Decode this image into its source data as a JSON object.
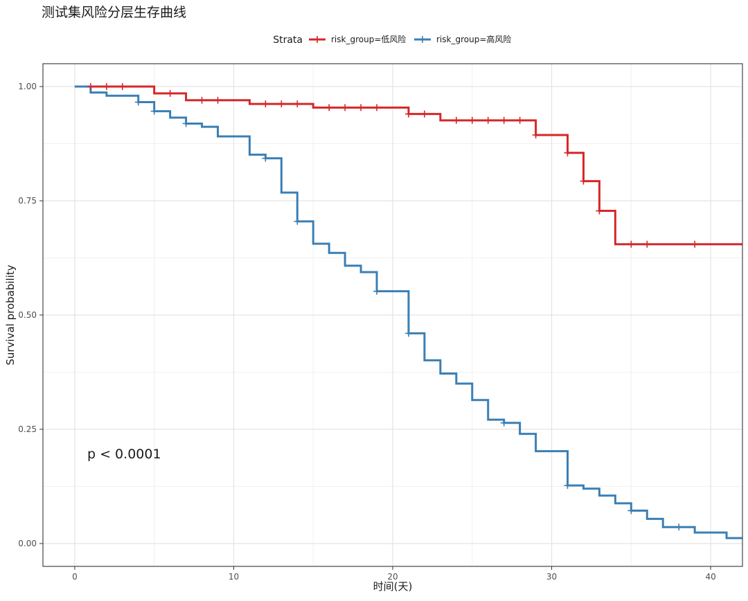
{
  "chart_data": {
    "type": "line",
    "title": "测试集风险分层生存曲线",
    "xlabel": "时间(天)",
    "ylabel": "Survival probability",
    "xlim": [
      -2,
      42
    ],
    "ylim": [
      -0.05,
      1.05
    ],
    "x_ticks": [
      0,
      10,
      20,
      30,
      40
    ],
    "y_ticks": [
      0.0,
      0.25,
      0.5,
      0.75,
      1.0
    ],
    "y_tick_labels": [
      "0.00",
      "0.25",
      "0.50",
      "0.75",
      "1.00"
    ],
    "grid": true,
    "legend": {
      "title": "Strata",
      "position": "top"
    },
    "annotation": "p < 0.0001",
    "series": [
      {
        "name": "risk_group=低风险",
        "color": "#d62728",
        "steps": [
          [
            0,
            1.0
          ],
          [
            5,
            0.985
          ],
          [
            7,
            0.97
          ],
          [
            11,
            0.962
          ],
          [
            15,
            0.954
          ],
          [
            21,
            0.94
          ],
          [
            23,
            0.926
          ],
          [
            29,
            0.894
          ],
          [
            31,
            0.855
          ],
          [
            32,
            0.793
          ],
          [
            33,
            0.728
          ],
          [
            34,
            0.655
          ],
          [
            42,
            0.655
          ]
        ],
        "censor": [
          [
            1,
            1.0
          ],
          [
            2,
            1.0
          ],
          [
            3,
            1.0
          ],
          [
            6,
            0.985
          ],
          [
            8,
            0.97
          ],
          [
            9,
            0.97
          ],
          [
            12,
            0.962
          ],
          [
            13,
            0.962
          ],
          [
            14,
            0.962
          ],
          [
            16,
            0.954
          ],
          [
            17,
            0.954
          ],
          [
            18,
            0.954
          ],
          [
            19,
            0.954
          ],
          [
            21,
            0.94
          ],
          [
            22,
            0.94
          ],
          [
            24,
            0.926
          ],
          [
            25,
            0.926
          ],
          [
            26,
            0.926
          ],
          [
            27,
            0.926
          ],
          [
            28,
            0.926
          ],
          [
            29,
            0.894
          ],
          [
            31,
            0.855
          ],
          [
            32,
            0.793
          ],
          [
            33,
            0.728
          ],
          [
            35,
            0.655
          ],
          [
            36,
            0.655
          ],
          [
            39,
            0.655
          ]
        ]
      },
      {
        "name": "risk_group=高风险",
        "color": "#3a7fb5",
        "steps": [
          [
            0,
            1.0
          ],
          [
            1,
            0.987
          ],
          [
            2,
            0.98
          ],
          [
            4,
            0.966
          ],
          [
            5,
            0.946
          ],
          [
            6,
            0.932
          ],
          [
            7,
            0.919
          ],
          [
            8,
            0.912
          ],
          [
            9,
            0.891
          ],
          [
            11,
            0.851
          ],
          [
            12,
            0.843
          ],
          [
            13,
            0.768
          ],
          [
            14,
            0.705
          ],
          [
            15,
            0.656
          ],
          [
            16,
            0.636
          ],
          [
            17,
            0.608
          ],
          [
            18,
            0.594
          ],
          [
            19,
            0.552
          ],
          [
            21,
            0.46
          ],
          [
            22,
            0.401
          ],
          [
            23,
            0.372
          ],
          [
            24,
            0.35
          ],
          [
            25,
            0.314
          ],
          [
            26,
            0.271
          ],
          [
            27,
            0.264
          ],
          [
            28,
            0.24
          ],
          [
            29,
            0.202
          ],
          [
            31,
            0.127
          ],
          [
            32,
            0.12
          ],
          [
            33,
            0.105
          ],
          [
            34,
            0.088
          ],
          [
            35,
            0.072
          ],
          [
            36,
            0.054
          ],
          [
            37,
            0.036
          ],
          [
            39,
            0.024
          ],
          [
            41,
            0.012
          ],
          [
            42,
            0.012
          ]
        ],
        "censor": [
          [
            4,
            0.966
          ],
          [
            5,
            0.946
          ],
          [
            7,
            0.919
          ],
          [
            12,
            0.843
          ],
          [
            14,
            0.705
          ],
          [
            19,
            0.552
          ],
          [
            21,
            0.46
          ],
          [
            27,
            0.264
          ],
          [
            31,
            0.127
          ],
          [
            35,
            0.072
          ],
          [
            38,
            0.036
          ]
        ]
      }
    ]
  }
}
